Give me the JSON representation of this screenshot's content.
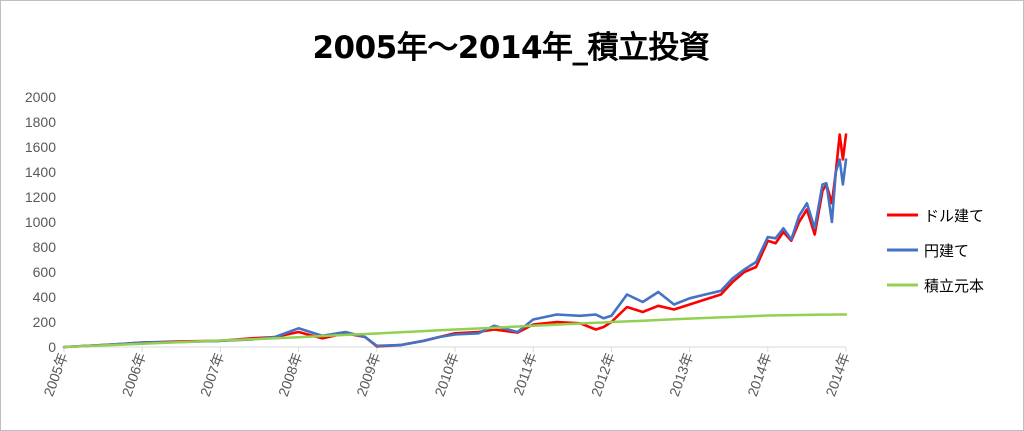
{
  "chart_data": {
    "type": "line",
    "title": "2005年～2014年_積立投資",
    "xlabel": "",
    "ylabel": "",
    "ylim": [
      0,
      2000
    ],
    "yticks": [
      "0",
      "200",
      "400",
      "600",
      "800",
      "1000",
      "1200",
      "1400",
      "1600",
      "1800",
      "2000"
    ],
    "xticks": [
      "2005年",
      "2006年",
      "2007年",
      "2008年",
      "2009年",
      "2010年",
      "2011年",
      "2012年",
      "2013年",
      "2014年",
      "2014年"
    ],
    "x": [
      2005.0,
      2005.5,
      2006.0,
      2006.5,
      2007.0,
      2007.4,
      2007.7,
      2007.85,
      2008.0,
      2008.3,
      2008.6,
      2008.85,
      2009.0,
      2009.3,
      2009.6,
      2009.8,
      2010.0,
      2010.3,
      2010.5,
      2010.8,
      2011.0,
      2011.3,
      2011.6,
      2011.8,
      2011.9,
      2012.0,
      2012.2,
      2012.4,
      2012.6,
      2012.8,
      2013.0,
      2013.2,
      2013.4,
      2013.55,
      2013.7,
      2013.85,
      2014.0,
      2014.1,
      2014.2,
      2014.3,
      2014.4,
      2014.5,
      2014.6,
      2014.7,
      2014.75,
      2014.82,
      2014.87,
      2014.92,
      2014.96,
      2015.0
    ],
    "grid": false,
    "legend": "right",
    "series": [
      {
        "name": "ドル建て",
        "color": "#ff0000",
        "values": [
          0,
          15,
          35,
          45,
          50,
          70,
          80,
          100,
          120,
          70,
          110,
          80,
          5,
          15,
          50,
          80,
          110,
          120,
          140,
          115,
          180,
          200,
          190,
          140,
          160,
          200,
          320,
          280,
          330,
          300,
          340,
          380,
          420,
          520,
          600,
          640,
          850,
          830,
          920,
          850,
          1000,
          1100,
          900,
          1250,
          1300,
          1150,
          1400,
          1700,
          1500,
          1700
        ]
      },
      {
        "name": "円建て",
        "color": "#4472c4",
        "values": [
          0,
          15,
          35,
          40,
          50,
          60,
          80,
          115,
          150,
          90,
          120,
          80,
          10,
          15,
          50,
          80,
          100,
          110,
          170,
          120,
          220,
          260,
          250,
          260,
          230,
          250,
          420,
          360,
          440,
          340,
          390,
          420,
          450,
          550,
          620,
          680,
          880,
          870,
          950,
          860,
          1050,
          1150,
          950,
          1300,
          1310,
          1000,
          1400,
          1500,
          1300,
          1500
        ]
      },
      {
        "name": "積立元本",
        "color": "#92d050",
        "values": [
          0,
          13,
          26,
          39,
          52,
          62,
          70,
          74,
          78,
          88,
          97,
          104,
          108,
          118,
          127,
          134,
          140,
          148,
          154,
          164,
          170,
          179,
          188,
          194,
          196,
          200,
          205,
          210,
          216,
          222,
          227,
          232,
          237,
          240,
          244,
          248,
          252,
          253,
          254,
          255,
          256,
          257,
          258,
          259,
          259,
          259,
          260,
          260,
          260,
          260
        ]
      }
    ]
  }
}
